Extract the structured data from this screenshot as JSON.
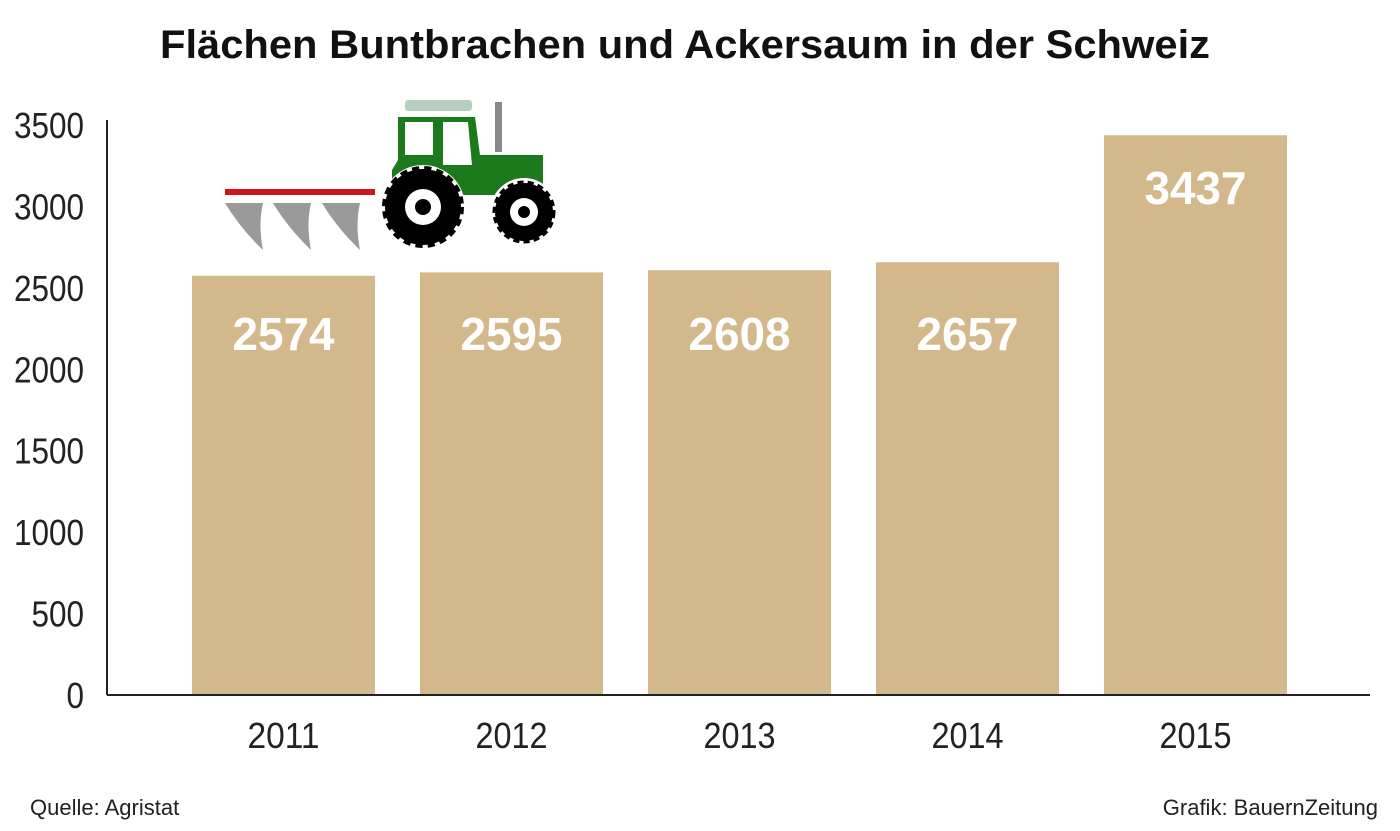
{
  "chart_data": {
    "type": "bar",
    "title": "Flächen Buntbrachen und Ackersaum in der Schweiz",
    "categories": [
      "2011",
      "2012",
      "2013",
      "2014",
      "2015"
    ],
    "values": [
      2574,
      2595,
      2608,
      2657,
      3437
    ],
    "data_labels": [
      "2574",
      "2595",
      "2608",
      "2657",
      "3437"
    ],
    "ylim": [
      0,
      3500
    ],
    "yticks": [
      0,
      500,
      1000,
      1500,
      2000,
      2500,
      3000,
      3500
    ],
    "xlabel": "",
    "ylabel": "",
    "grid": false,
    "colors": {
      "bar": "#d3b88c",
      "label": "#ffffff",
      "axis": "#222222",
      "tractor": "#1b7a1b",
      "plow_bar": "#d0141c",
      "plow_blade": "#9a9a9a"
    },
    "decoration": "tractor-with-plow-icon"
  },
  "footer": {
    "source": "Quelle: Agristat",
    "credit": "Grafik: BauernZeitung"
  }
}
